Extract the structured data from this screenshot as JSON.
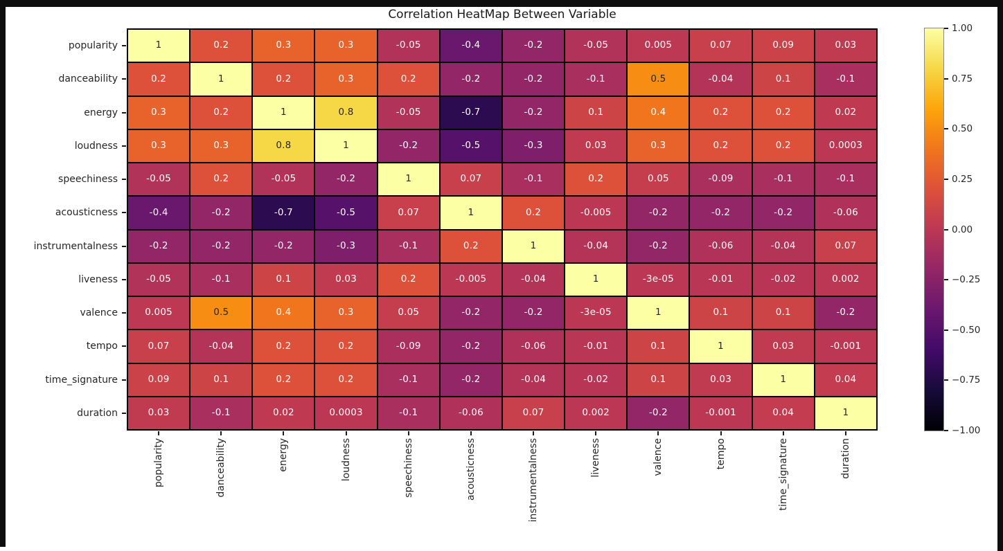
{
  "window": {
    "frame_color": "#0e0e0e",
    "figure_background": "#ffffff"
  },
  "chart_data": {
    "type": "heatmap",
    "title": "Correlation HeatMap Between Variable",
    "categories": [
      "popularity",
      "danceability",
      "energy",
      "loudness",
      "speechiness",
      "acousticness",
      "instrumentalness",
      "liveness",
      "valence",
      "tempo",
      "time_signature",
      "duration"
    ],
    "matrix": [
      [
        "1",
        "0.2",
        "0.3",
        "0.3",
        "-0.05",
        "-0.4",
        "-0.2",
        "-0.05",
        "0.005",
        "0.07",
        "0.09",
        "0.03"
      ],
      [
        "0.2",
        "1",
        "0.2",
        "0.3",
        "0.2",
        "-0.2",
        "-0.2",
        "-0.1",
        "0.5",
        "-0.04",
        "0.1",
        "-0.1"
      ],
      [
        "0.3",
        "0.2",
        "1",
        "0.8",
        "-0.05",
        "-0.7",
        "-0.2",
        "0.1",
        "0.4",
        "0.2",
        "0.2",
        "0.02"
      ],
      [
        "0.3",
        "0.3",
        "0.8",
        "1",
        "-0.2",
        "-0.5",
        "-0.3",
        "0.03",
        "0.3",
        "0.2",
        "0.2",
        "0.0003"
      ],
      [
        "-0.05",
        "0.2",
        "-0.05",
        "-0.2",
        "1",
        "0.07",
        "-0.1",
        "0.2",
        "0.05",
        "-0.09",
        "-0.1",
        "-0.1"
      ],
      [
        "-0.4",
        "-0.2",
        "-0.7",
        "-0.5",
        "0.07",
        "1",
        "0.2",
        "-0.005",
        "-0.2",
        "-0.2",
        "-0.2",
        "-0.06"
      ],
      [
        "-0.2",
        "-0.2",
        "-0.2",
        "-0.3",
        "-0.1",
        "0.2",
        "1",
        "-0.04",
        "-0.2",
        "-0.06",
        "-0.04",
        "0.07"
      ],
      [
        "-0.05",
        "-0.1",
        "0.1",
        "0.03",
        "0.2",
        "-0.005",
        "-0.04",
        "1",
        "-3e-05",
        "-0.01",
        "-0.02",
        "0.002"
      ],
      [
        "0.005",
        "0.5",
        "0.4",
        "0.3",
        "0.05",
        "-0.2",
        "-0.2",
        "-3e-05",
        "1",
        "0.1",
        "0.1",
        "-0.2"
      ],
      [
        "0.07",
        "-0.04",
        "0.2",
        "0.2",
        "-0.09",
        "-0.2",
        "-0.06",
        "-0.01",
        "0.1",
        "1",
        "0.03",
        "-0.001"
      ],
      [
        "0.09",
        "0.1",
        "0.2",
        "0.2",
        "-0.1",
        "-0.2",
        "-0.04",
        "-0.02",
        "0.1",
        "0.03",
        "1",
        "0.04"
      ],
      [
        "0.03",
        "-0.1",
        "0.02",
        "0.0003",
        "-0.1",
        "-0.06",
        "0.07",
        "0.002",
        "-0.2",
        "-0.001",
        "0.04",
        "1"
      ]
    ],
    "vmin": -1,
    "vmax": 1,
    "colormap": "inferno",
    "colormap_stops": [
      "#000004",
      "#160b39",
      "#420a68",
      "#6a176e",
      "#932667",
      "#bc3754",
      "#dd513a",
      "#f1751c",
      "#fca50a",
      "#f6d746",
      "#fcffa4"
    ],
    "grid_line_color": "#000000",
    "annotation_dark": "#262626",
    "annotation_light": "#ffffff",
    "tick_label_color": "#262626",
    "legend_position": "right",
    "colorbar": {
      "tick_labels": [
        "1.00",
        "0.75",
        "0.50",
        "0.25",
        "0.00",
        "−0.25",
        "−0.50",
        "−0.75",
        "−1.00"
      ]
    }
  }
}
